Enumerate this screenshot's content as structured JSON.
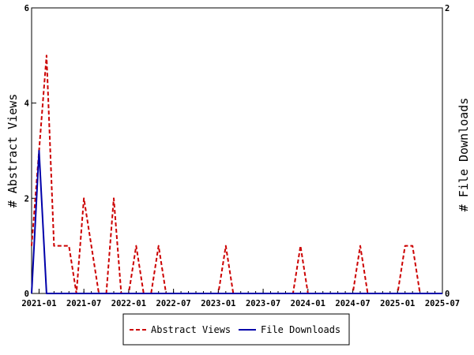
{
  "chart_data": {
    "type": "line",
    "title": "",
    "xlabel": "",
    "ylabel_left": "# Abstract Views",
    "ylabel_right": "# File Downloads",
    "ylim_left": [
      0,
      6
    ],
    "ylim_right": [
      0,
      2
    ],
    "yticks_left": [
      "0",
      "2",
      "4",
      "6"
    ],
    "yticks_right": [
      "0",
      "2"
    ],
    "xlim": [
      "2020-12",
      "2025-07"
    ],
    "xtick_labels": [
      "2021-01",
      "2021-07",
      "2022-01",
      "2022-07",
      "2023-01",
      "2023-07",
      "2024-01",
      "2024-07",
      "2025-01",
      "2025-07"
    ],
    "legend_position": "bottom",
    "grid": false,
    "colors": {
      "abstract_views": "#cc0000",
      "file_downloads": "#0000aa"
    },
    "series": [
      {
        "name": "Abstract Views",
        "axis": "left",
        "style": "dashed",
        "x": [
          "2020-12",
          "2021-01",
          "2021-02",
          "2021-03",
          "2021-04",
          "2021-05",
          "2021-06",
          "2021-07",
          "2021-08",
          "2021-09",
          "2021-10",
          "2021-11",
          "2021-12",
          "2022-01",
          "2022-02",
          "2022-03",
          "2022-04",
          "2022-05",
          "2022-06",
          "2022-07",
          "2022-08",
          "2022-09",
          "2022-10",
          "2022-11",
          "2022-12",
          "2023-01",
          "2023-02",
          "2023-03",
          "2023-04",
          "2023-05",
          "2023-06",
          "2023-07",
          "2023-08",
          "2023-09",
          "2023-10",
          "2023-11",
          "2023-12",
          "2024-01",
          "2024-02",
          "2024-03",
          "2024-04",
          "2024-05",
          "2024-06",
          "2024-07",
          "2024-08",
          "2024-09",
          "2024-10",
          "2024-11",
          "2024-12",
          "2025-01",
          "2025-02",
          "2025-03",
          "2025-04",
          "2025-05",
          "2025-06",
          "2025-07"
        ],
        "values": [
          1,
          3,
          5,
          1,
          1,
          1,
          0,
          2,
          1,
          0,
          0,
          2,
          0,
          0,
          1,
          0,
          0,
          1,
          0,
          0,
          0,
          0,
          0,
          0,
          0,
          0,
          1,
          0,
          0,
          0,
          0,
          0,
          0,
          0,
          0,
          0,
          1,
          0,
          0,
          0,
          0,
          0,
          0,
          0,
          1,
          0,
          0,
          0,
          0,
          0,
          1,
          1,
          0,
          0,
          0,
          0
        ]
      },
      {
        "name": "File Downloads",
        "axis": "right",
        "style": "solid",
        "x": [
          "2020-12",
          "2021-01",
          "2021-02",
          "2021-03",
          "2021-04",
          "2021-05",
          "2021-06",
          "2021-07",
          "2021-08",
          "2021-09",
          "2021-10",
          "2021-11",
          "2021-12",
          "2022-01",
          "2022-02",
          "2022-03",
          "2022-04",
          "2022-05",
          "2022-06",
          "2022-07",
          "2022-08",
          "2022-09",
          "2022-10",
          "2022-11",
          "2022-12",
          "2023-01",
          "2023-02",
          "2023-03",
          "2023-04",
          "2023-05",
          "2023-06",
          "2023-07",
          "2023-08",
          "2023-09",
          "2023-10",
          "2023-11",
          "2023-12",
          "2024-01",
          "2024-02",
          "2024-03",
          "2024-04",
          "2024-05",
          "2024-06",
          "2024-07",
          "2024-08",
          "2024-09",
          "2024-10",
          "2024-11",
          "2024-12",
          "2025-01",
          "2025-02",
          "2025-03",
          "2025-04",
          "2025-05",
          "2025-06",
          "2025-07"
        ],
        "values": [
          0,
          1,
          0,
          0,
          0,
          0,
          0,
          0,
          0,
          0,
          0,
          0,
          0,
          0,
          0,
          0,
          0,
          0,
          0,
          0,
          0,
          0,
          0,
          0,
          0,
          0,
          0,
          0,
          0,
          0,
          0,
          0,
          0,
          0,
          0,
          0,
          0,
          0,
          0,
          0,
          0,
          0,
          0,
          0,
          0,
          0,
          0,
          0,
          0,
          0,
          0,
          0,
          0,
          0,
          0,
          0
        ]
      }
    ]
  }
}
